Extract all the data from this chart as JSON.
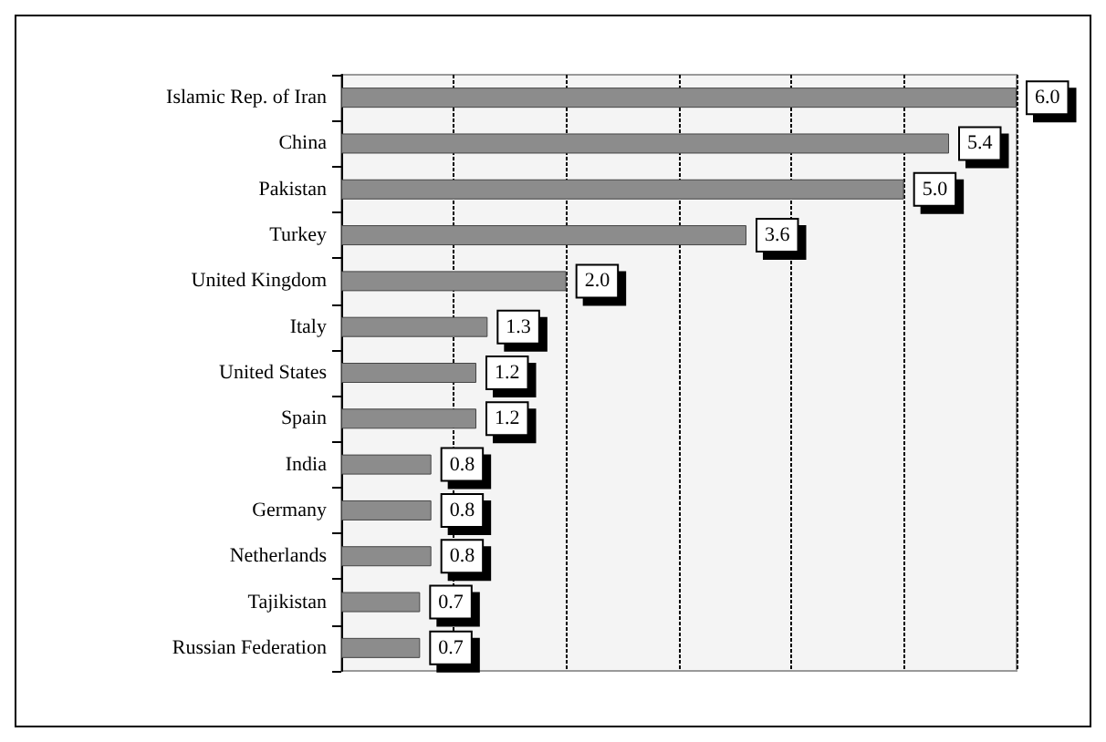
{
  "chart_data": {
    "type": "bar",
    "orientation": "horizontal",
    "categories": [
      "Islamic Rep. of Iran",
      "China",
      "Pakistan",
      "Turkey",
      "United Kingdom",
      "Italy",
      "United States",
      "Spain",
      "India",
      "Germany",
      "Netherlands",
      "Tajikistan",
      "Russian Federation"
    ],
    "values": [
      6.0,
      5.4,
      5.0,
      3.6,
      2.0,
      1.3,
      1.2,
      1.2,
      0.8,
      0.8,
      0.8,
      0.7,
      0.7
    ],
    "value_labels": [
      "6.0",
      "5.4",
      "5.0",
      "3.6",
      "2.0",
      "1.3",
      "1.2",
      "1.2",
      "0.8",
      "0.8",
      "0.8",
      "0.7",
      "0.7"
    ],
    "color": "#8c8c8c",
    "xlim": [
      0,
      6
    ],
    "xticks": [
      {
        "value": 0,
        "label": null
      },
      {
        "value": 1,
        "label": null
      },
      {
        "value": 2,
        "label": null
      },
      {
        "value": 3,
        "label": null
      },
      {
        "value": 4,
        "label": null
      },
      {
        "value": 5,
        "label": null
      },
      {
        "value": 6,
        "label": null
      }
    ],
    "grid": "x",
    "tick_labels": "y"
  }
}
